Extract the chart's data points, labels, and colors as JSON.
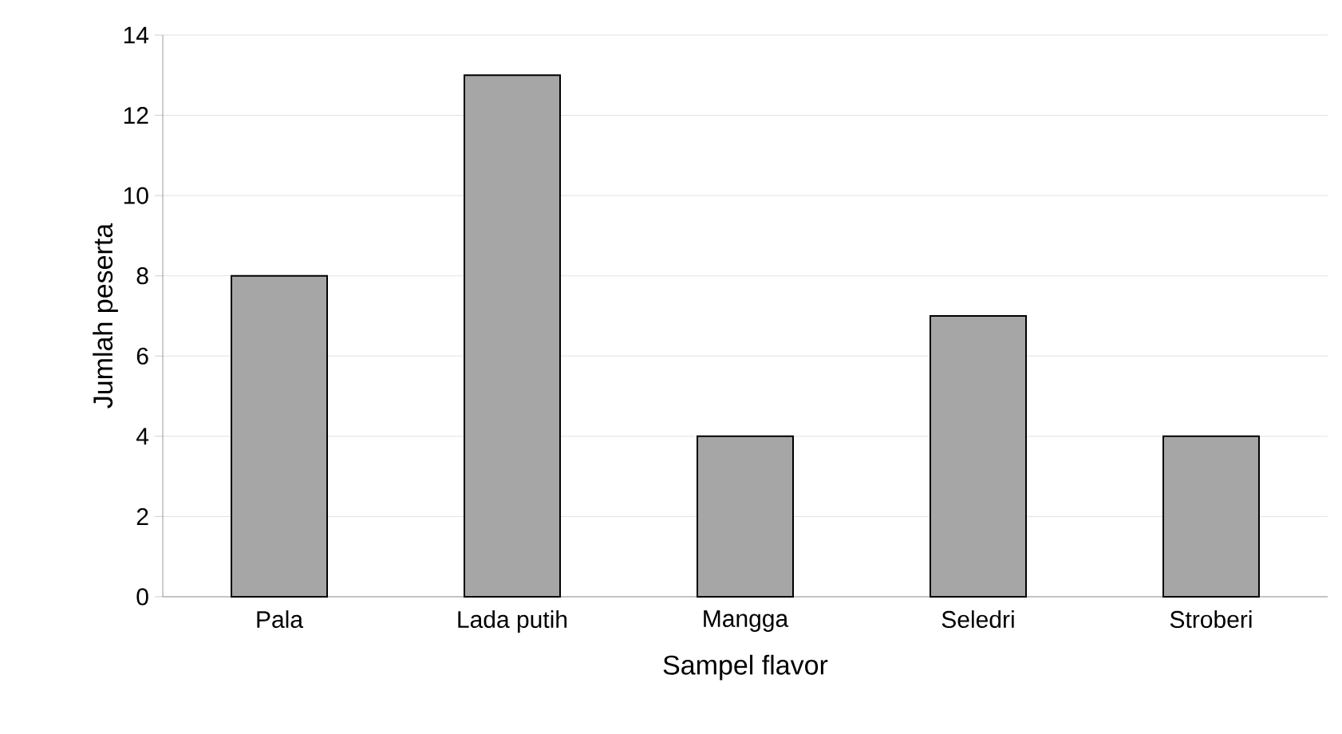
{
  "chart_data": {
    "type": "bar",
    "xlabel": "Sampel flavor",
    "ylabel": "Jumlah peserta",
    "categories": [
      "Pala",
      "Lada putih",
      "Mangga",
      "Seledri",
      "Stroberi"
    ],
    "values": [
      8,
      13,
      4,
      7,
      4
    ],
    "color": "#a6a6a6",
    "ylim": [
      0,
      14
    ],
    "yticks": [
      0,
      2,
      4,
      6,
      8,
      10,
      12,
      14
    ],
    "grid": "y"
  }
}
